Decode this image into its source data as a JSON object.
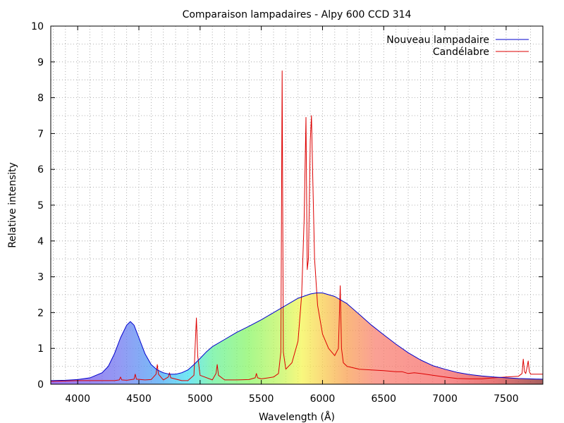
{
  "chart_data": {
    "type": "line",
    "title": "Comparaison lampadaires - Alpy 600 CCD 314",
    "xlabel": "Wavelength (Å)",
    "ylabel": "Relative intensity",
    "xlim": [
      3780,
      7800
    ],
    "ylim": [
      0,
      10
    ],
    "grid": true,
    "legend_position": "top-right",
    "x_ticks": [
      "4000",
      "4500",
      "5000",
      "5500",
      "6000",
      "6500",
      "7000",
      "7500"
    ],
    "y_ticks": [
      "0",
      "1",
      "2",
      "3",
      "4",
      "5",
      "6",
      "7",
      "8",
      "9",
      "10"
    ],
    "fill_under": "Nouveau lampadaire",
    "series": [
      {
        "name": "Nouveau lampadaire",
        "color": "#0000cc",
        "x": [
          3780,
          3900,
          4000,
          4100,
          4200,
          4250,
          4300,
          4350,
          4400,
          4430,
          4460,
          4500,
          4550,
          4600,
          4650,
          4700,
          4750,
          4800,
          4850,
          4900,
          4950,
          5000,
          5050,
          5100,
          5200,
          5300,
          5400,
          5500,
          5600,
          5700,
          5800,
          5900,
          5950,
          6000,
          6100,
          6200,
          6300,
          6400,
          6500,
          6600,
          6700,
          6800,
          6900,
          7000,
          7100,
          7200,
          7300,
          7400,
          7500,
          7600,
          7700,
          7800
        ],
        "y": [
          0.1,
          0.11,
          0.13,
          0.18,
          0.32,
          0.5,
          0.85,
          1.3,
          1.65,
          1.75,
          1.65,
          1.3,
          0.85,
          0.55,
          0.4,
          0.32,
          0.28,
          0.28,
          0.32,
          0.4,
          0.55,
          0.72,
          0.9,
          1.05,
          1.25,
          1.45,
          1.62,
          1.8,
          2.0,
          2.2,
          2.4,
          2.52,
          2.55,
          2.55,
          2.45,
          2.25,
          1.95,
          1.65,
          1.38,
          1.12,
          0.88,
          0.68,
          0.52,
          0.42,
          0.33,
          0.27,
          0.23,
          0.2,
          0.18,
          0.16,
          0.15,
          0.14
        ]
      },
      {
        "name": "Candélabre",
        "color": "#dd0000",
        "x": [
          3780,
          3900,
          4000,
          4100,
          4200,
          4300,
          4340,
          4350,
          4360,
          4400,
          4460,
          4470,
          4480,
          4550,
          4600,
          4640,
          4650,
          4660,
          4700,
          4740,
          4750,
          4760,
          4850,
          4900,
          4950,
          4960,
          4970,
          4980,
          5000,
          5100,
          5130,
          5140,
          5150,
          5200,
          5300,
          5400,
          5450,
          5460,
          5470,
          5500,
          5600,
          5640,
          5660,
          5670,
          5680,
          5700,
          5750,
          5800,
          5830,
          5850,
          5865,
          5875,
          5885,
          5900,
          5910,
          5920,
          5935,
          5960,
          6000,
          6050,
          6100,
          6130,
          6145,
          6155,
          6170,
          6200,
          6300,
          6400,
          6500,
          6600,
          6650,
          6700,
          6750,
          6800,
          6900,
          7000,
          7100,
          7200,
          7300,
          7400,
          7500,
          7600,
          7630,
          7640,
          7650,
          7660,
          7670,
          7680,
          7690,
          7700,
          7750,
          7800
        ],
        "y": [
          0.08,
          0.09,
          0.1,
          0.1,
          0.1,
          0.1,
          0.12,
          0.2,
          0.12,
          0.11,
          0.14,
          0.28,
          0.14,
          0.12,
          0.13,
          0.28,
          0.55,
          0.28,
          0.12,
          0.2,
          0.32,
          0.18,
          0.1,
          0.1,
          0.25,
          1.1,
          1.85,
          0.8,
          0.25,
          0.12,
          0.3,
          0.55,
          0.25,
          0.12,
          0.12,
          0.13,
          0.18,
          0.3,
          0.18,
          0.15,
          0.2,
          0.3,
          0.9,
          8.75,
          0.9,
          0.42,
          0.6,
          1.2,
          2.5,
          4.6,
          7.45,
          3.2,
          3.5,
          6.8,
          7.5,
          5.8,
          3.5,
          2.2,
          1.4,
          1.0,
          0.8,
          1.0,
          2.75,
          1.0,
          0.6,
          0.5,
          0.42,
          0.4,
          0.38,
          0.35,
          0.35,
          0.3,
          0.32,
          0.3,
          0.25,
          0.2,
          0.16,
          0.15,
          0.15,
          0.18,
          0.2,
          0.22,
          0.3,
          0.7,
          0.35,
          0.3,
          0.45,
          0.65,
          0.35,
          0.28,
          0.28,
          0.28
        ]
      }
    ]
  }
}
